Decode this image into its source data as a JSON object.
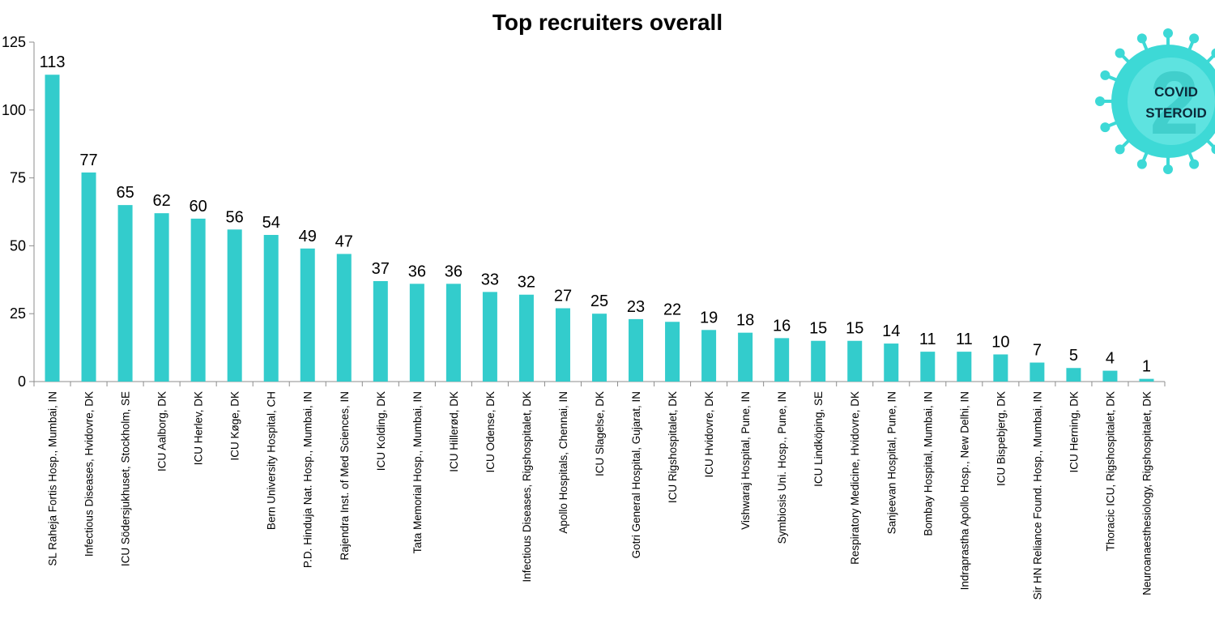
{
  "chart_data": {
    "type": "bar",
    "title": "Top recruiters overall",
    "xlabel": "",
    "ylabel": "",
    "ylim": [
      0,
      125
    ],
    "yticks": [
      0,
      25,
      50,
      75,
      100,
      125
    ],
    "grid": false,
    "bar_color": "#33CCCC",
    "data_labels": true,
    "categories": [
      "SL Raheja Fortis Hosp., Mumbai, IN",
      "Infectious Diseases, Hvidovre, DK",
      "ICU Södersjukhuset, Stockholm, SE",
      "ICU Aalborg, DK",
      "ICU Herlev, DK",
      "ICU Køge, DK",
      "Bern University Hospital, CH",
      "P.D. Hinduja Nat. Hosp., Mumbai, IN",
      "Rajendra Inst. of Med Sciences, IN",
      "ICU Kolding, DK",
      "Tata Memorial Hosp., Mumbai, IN",
      "ICU Hillerød, DK",
      "ICU Odense, DK",
      "Infectious Diseases, Rigshospitalet, DK",
      "Apollo Hospitals, Chennai, IN",
      "ICU Slagelse, DK",
      "Gotri General Hospital, Gujarat, IN",
      "ICU Rigshospitalet, DK",
      "ICU Hvidovre, DK",
      "Vishwaraj Hospital, Pune, IN",
      "Symbiosis Uni. Hosp., Pune, IN",
      "ICU Lindköping, SE",
      "Respiratory Medicine, Hvidovre, DK",
      "Sanjeevan Hospital, Pune, IN",
      "Bombay Hospital, Mumbai, IN",
      "Indraprastha Apollo Hosp., New Delhi, IN",
      "ICU Bispebjerg, DK",
      "Sir HN Reliance Found. Hosp., Mumbai, IN",
      "ICU Herning, DK",
      "Thoracic ICU, Rigshospitalet, DK",
      "Neuroanaesthesiology, Rigshospitalet, DK"
    ],
    "values": [
      113,
      77,
      65,
      62,
      60,
      56,
      54,
      49,
      47,
      37,
      36,
      36,
      33,
      32,
      27,
      25,
      23,
      22,
      19,
      18,
      16,
      15,
      15,
      14,
      11,
      11,
      10,
      7,
      5,
      4,
      1
    ]
  },
  "logo": {
    "line1": "COVID",
    "line2": "STEROID",
    "numeral": "2",
    "color": "#3DD9D6"
  }
}
